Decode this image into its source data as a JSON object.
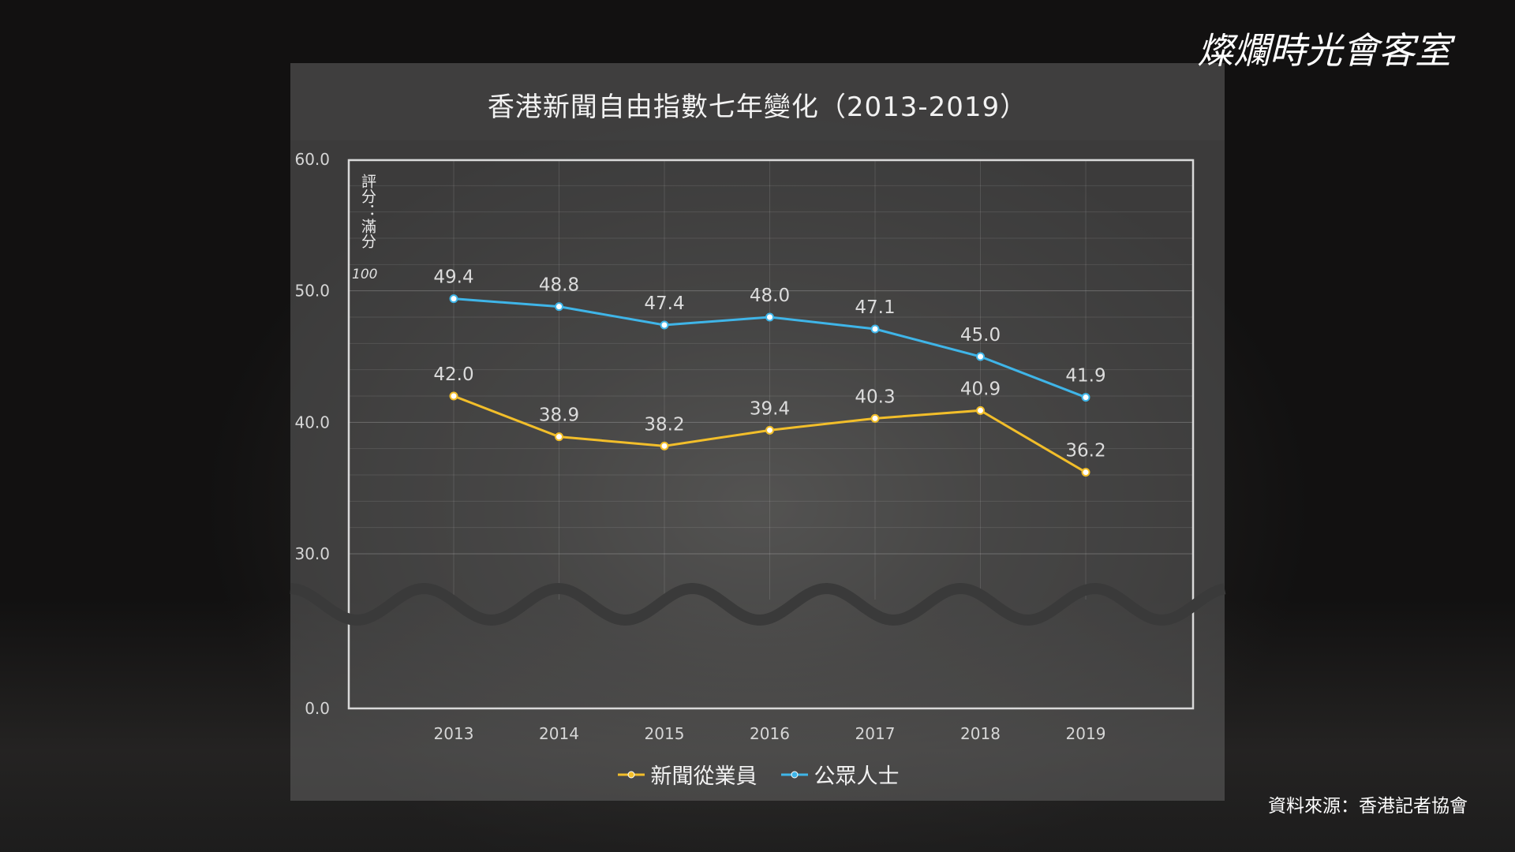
{
  "logo": {
    "text": "燦爛時光會客室"
  },
  "source": "資料來源：香港記者協會",
  "colors": {
    "series_journalists": "#f2be2a",
    "series_public": "#3fb5e8",
    "axis": "#d9d9d9"
  },
  "chart_data": {
    "type": "line",
    "title": "香港新聞自由指數七年變化（2013-2019）",
    "xlabel": "",
    "ylabel": "評分：滿分",
    "ylabel_suffix": "100",
    "categories": [
      "2013",
      "2014",
      "2015",
      "2016",
      "2017",
      "2018",
      "2019"
    ],
    "y_ticks": [
      "0.0",
      "30.0",
      "40.0",
      "50.0",
      "60.0"
    ],
    "y_axis_break": {
      "from": 0,
      "to": 30
    },
    "ylim": [
      0,
      60
    ],
    "grid": true,
    "legend_position": "bottom",
    "series": [
      {
        "name": "新聞從業員",
        "values": [
          42.0,
          38.9,
          38.2,
          39.4,
          40.3,
          40.9,
          36.2
        ],
        "labels": [
          "42.0",
          "38.9",
          "38.2",
          "39.4",
          "40.3",
          "40.9",
          "36.2"
        ]
      },
      {
        "name": "公眾人士",
        "values": [
          49.4,
          48.8,
          47.4,
          48.0,
          47.1,
          45.0,
          41.9
        ],
        "labels": [
          "49.4",
          "48.8",
          "47.4",
          "48.0",
          "47.1",
          "45.0",
          "41.9"
        ]
      }
    ]
  }
}
